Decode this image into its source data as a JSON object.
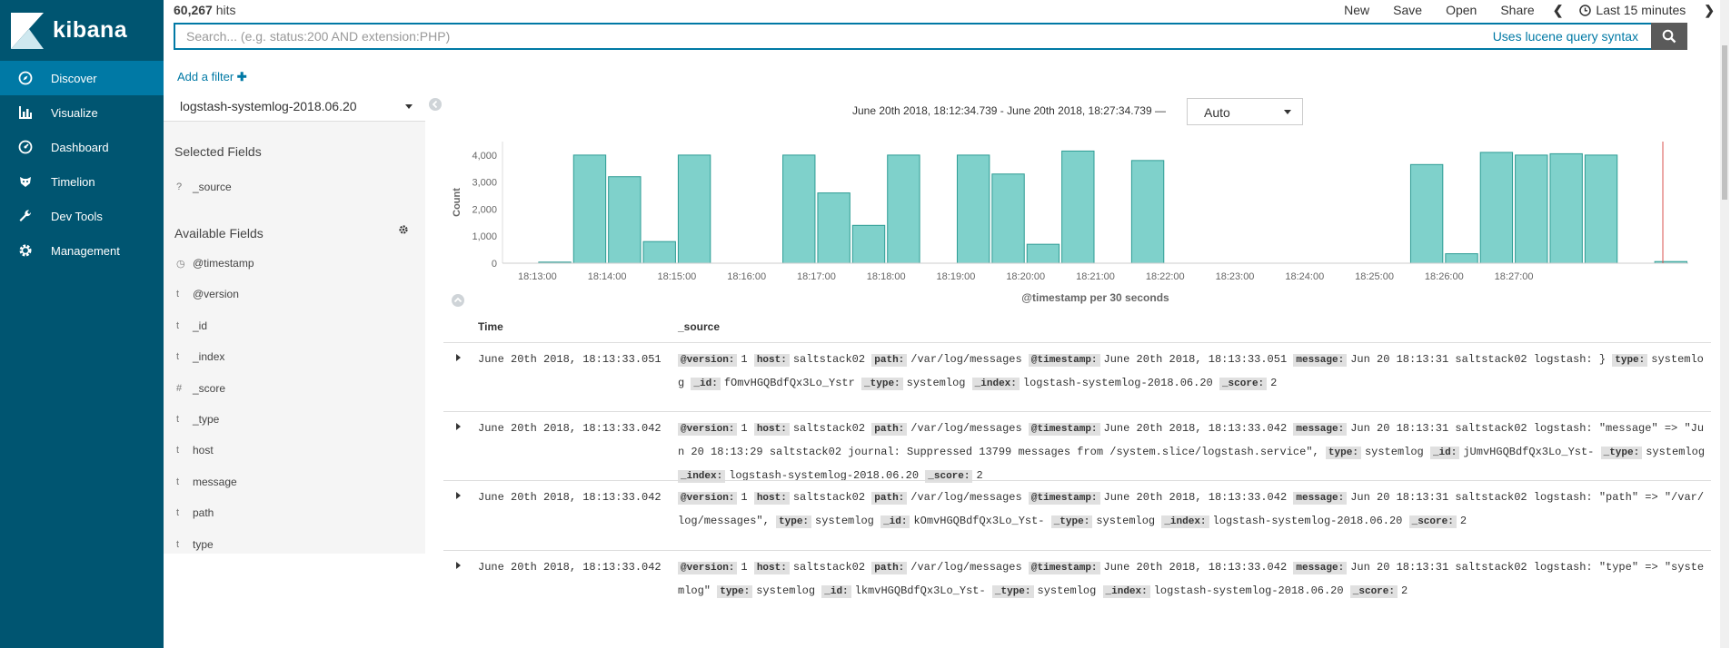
{
  "app": {
    "name": "kibana"
  },
  "nav": [
    {
      "label": "Discover",
      "icon": "compass-icon",
      "active": true
    },
    {
      "label": "Visualize",
      "icon": "bar-chart-icon",
      "active": false
    },
    {
      "label": "Dashboard",
      "icon": "dashboard-icon",
      "active": false
    },
    {
      "label": "Timelion",
      "icon": "timelion-icon",
      "active": false
    },
    {
      "label": "Dev Tools",
      "icon": "wrench-icon",
      "active": false
    },
    {
      "label": "Management",
      "icon": "gear-icon",
      "active": false
    }
  ],
  "header": {
    "hits_count": "60,267",
    "hits_label": "hits",
    "menu": {
      "new": "New",
      "save": "Save",
      "open": "Open",
      "share": "Share"
    },
    "time_picker": "Last 15 minutes"
  },
  "search": {
    "placeholder": "Search... (e.g. status:200 AND extension:PHP)",
    "lucene_link": "Uses lucene query syntax"
  },
  "filter": {
    "add_label": "Add a filter"
  },
  "sidebar": {
    "index_pattern": "logstash-systemlog-2018.06.20",
    "selected_title": "Selected Fields",
    "selected_fields": [
      {
        "type": "?",
        "name": "_source"
      }
    ],
    "available_title": "Available Fields",
    "available_fields": [
      {
        "type": "◷",
        "name": "@timestamp"
      },
      {
        "type": "t",
        "name": "@version"
      },
      {
        "type": "t",
        "name": "_id"
      },
      {
        "type": "t",
        "name": "_index"
      },
      {
        "type": "#",
        "name": "_score"
      },
      {
        "type": "t",
        "name": "_type"
      },
      {
        "type": "t",
        "name": "host"
      },
      {
        "type": "t",
        "name": "message"
      },
      {
        "type": "t",
        "name": "path"
      },
      {
        "type": "t",
        "name": "type"
      }
    ]
  },
  "range": {
    "text": "June 20th 2018, 18:12:34.739 - June 20th 2018, 18:27:34.739 —",
    "interval": "Auto"
  },
  "colors": {
    "accent": "#0079a5",
    "sidebar": "#005571",
    "bar": "#7fd1cb",
    "bar_stroke": "#2d9c94"
  },
  "chart_data": {
    "type": "bar",
    "ylabel": "Count",
    "xlabel": "@timestamp per 30 seconds",
    "ylim": [
      0,
      4500
    ],
    "yticks": [
      "0",
      "1,000",
      "2,000",
      "3,000",
      "4,000"
    ],
    "xticks": [
      "18:13:00",
      "18:14:00",
      "18:15:00",
      "18:16:00",
      "18:17:00",
      "18:18:00",
      "18:19:00",
      "18:20:00",
      "18:21:00",
      "18:22:00",
      "18:23:00",
      "18:24:00",
      "18:25:00",
      "18:26:00",
      "18:27:00"
    ],
    "x_start": "18:12:30",
    "bucket_seconds": 30,
    "values": [
      0,
      40,
      4000,
      3200,
      800,
      4000,
      0,
      0,
      4000,
      2600,
      1400,
      4000,
      0,
      4000,
      3300,
      700,
      4150,
      0,
      3800,
      0,
      0,
      0,
      0,
      0,
      0,
      0,
      3650,
      350,
      4100,
      4000,
      4050,
      4000,
      0,
      60
    ],
    "grid": false
  },
  "table": {
    "headers": {
      "time": "Time",
      "source": "_source"
    },
    "rows": [
      {
        "time": "June 20th 2018, 18:13:33.051",
        "fields": [
          [
            "@version:",
            "1"
          ],
          [
            "host:",
            "saltstack02"
          ],
          [
            "path:",
            "/var/log/messages"
          ],
          [
            "@timestamp:",
            "June 20th 2018, 18:13:33.051"
          ],
          [
            "message:",
            "Jun 20 18:13:31 saltstack02 logstash: }"
          ],
          [
            "type:",
            "systemlog"
          ],
          [
            "_id:",
            "fOmvHGQBdfQx3Lo_Ystr"
          ],
          [
            "_type:",
            "systemlog"
          ],
          [
            "_index:",
            "logstash-systemlog-2018.06.20"
          ],
          [
            "_score:",
            "2"
          ]
        ]
      },
      {
        "time": "June 20th 2018, 18:13:33.042",
        "fields": [
          [
            "@version:",
            "1"
          ],
          [
            "host:",
            "saltstack02"
          ],
          [
            "path:",
            "/var/log/messages"
          ],
          [
            "@timestamp:",
            "June 20th 2018, 18:13:33.042"
          ],
          [
            "message:",
            "Jun 20 18:13:31 saltstack02 logstash: \"message\" => \"Jun 20 18:13:29 saltstack02 journal: Suppressed 13799 messages from /system.slice/logstash.service\","
          ],
          [
            "type:",
            "systemlog"
          ],
          [
            "_id:",
            "jUmvHGQBdfQx3Lo_Yst-"
          ],
          [
            "_type:",
            "systemlog"
          ],
          [
            "_index:",
            "logstash-systemlog-2018.06.20"
          ],
          [
            "_score:",
            "2"
          ]
        ]
      },
      {
        "time": "June 20th 2018, 18:13:33.042",
        "fields": [
          [
            "@version:",
            "1"
          ],
          [
            "host:",
            "saltstack02"
          ],
          [
            "path:",
            "/var/log/messages"
          ],
          [
            "@timestamp:",
            "June 20th 2018, 18:13:33.042"
          ],
          [
            "message:",
            "Jun 20 18:13:31 saltstack02 logstash: \"path\" => \"/var/log/messages\","
          ],
          [
            "type:",
            "systemlog"
          ],
          [
            "_id:",
            "kOmvHGQBdfQx3Lo_Yst-"
          ],
          [
            "_type:",
            "systemlog"
          ],
          [
            "_index:",
            "logstash-systemlog-2018.06.20"
          ],
          [
            "_score:",
            "2"
          ]
        ]
      },
      {
        "time": "June 20th 2018, 18:13:33.042",
        "fields": [
          [
            "@version:",
            "1"
          ],
          [
            "host:",
            "saltstack02"
          ],
          [
            "path:",
            "/var/log/messages"
          ],
          [
            "@timestamp:",
            "June 20th 2018, 18:13:33.042"
          ],
          [
            "message:",
            "Jun 20 18:13:31 saltstack02 logstash: \"type\" => \"systemlog\""
          ],
          [
            "type:",
            "systemlog"
          ],
          [
            "_id:",
            "lkmvHGQBdfQx3Lo_Yst-"
          ],
          [
            "_type:",
            "systemlog"
          ],
          [
            "_index:",
            "logstash-systemlog-2018.06.20"
          ],
          [
            "_score:",
            "2"
          ]
        ]
      }
    ]
  }
}
